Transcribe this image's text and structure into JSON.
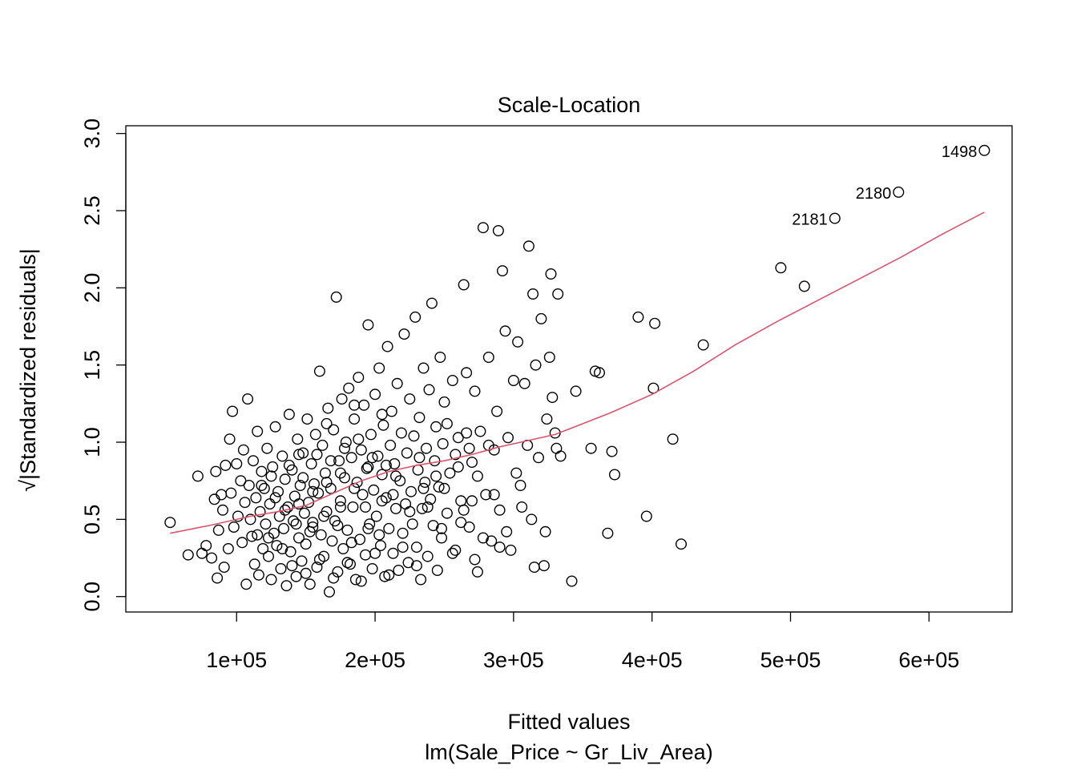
{
  "chart_data": {
    "type": "scatter",
    "title": "Scale-Location",
    "xlabel": "Fitted values",
    "subtitle": "lm(Sale_Price ~ Gr_Liv_Area)",
    "ylabel_root": "√",
    "ylabel": "|Standardized residuals|",
    "xlim": [
      20000,
      660000
    ],
    "ylim": [
      -0.1,
      3.05
    ],
    "x_ticks": [
      {
        "value": 100000,
        "label": "1e+05"
      },
      {
        "value": 200000,
        "label": "2e+05"
      },
      {
        "value": 300000,
        "label": "3e+05"
      },
      {
        "value": 400000,
        "label": "4e+05"
      },
      {
        "value": 500000,
        "label": "5e+05"
      },
      {
        "value": 600000,
        "label": "6e+05"
      }
    ],
    "y_ticks": [
      {
        "value": 0.0,
        "label": "0.0"
      },
      {
        "value": 0.5,
        "label": "0.5"
      },
      {
        "value": 1.0,
        "label": "1.0"
      },
      {
        "value": 1.5,
        "label": "1.5"
      },
      {
        "value": 2.0,
        "label": "2.0"
      },
      {
        "value": 2.5,
        "label": "2.5"
      },
      {
        "value": 3.0,
        "label": "3.0"
      }
    ],
    "smoother_color": "#DF536B",
    "point_color": "#000000",
    "labeled_points": [
      {
        "label": "1498",
        "x": 640000,
        "y": 2.89
      },
      {
        "label": "2180",
        "x": 578000,
        "y": 2.62
      },
      {
        "label": "2181",
        "x": 532000,
        "y": 2.45
      }
    ],
    "smoother": [
      [
        52000,
        0.41
      ],
      [
        80000,
        0.46
      ],
      [
        110000,
        0.52
      ],
      [
        130000,
        0.55
      ],
      [
        150000,
        0.59
      ],
      [
        170000,
        0.67
      ],
      [
        190000,
        0.75
      ],
      [
        210000,
        0.81
      ],
      [
        230000,
        0.85
      ],
      [
        250000,
        0.88
      ],
      [
        270000,
        0.92
      ],
      [
        290000,
        0.97
      ],
      [
        310000,
        1.01
      ],
      [
        330000,
        1.05
      ],
      [
        350000,
        1.12
      ],
      [
        370000,
        1.19
      ],
      [
        400000,
        1.31
      ],
      [
        430000,
        1.46
      ],
      [
        460000,
        1.63
      ],
      [
        490000,
        1.78
      ],
      [
        520000,
        1.92
      ],
      [
        550000,
        2.06
      ],
      [
        580000,
        2.2
      ],
      [
        610000,
        2.35
      ],
      [
        640000,
        2.49
      ]
    ],
    "points": [
      [
        52000,
        0.48
      ],
      [
        65000,
        0.27
      ],
      [
        72000,
        0.78
      ],
      [
        75000,
        0.28
      ],
      [
        78000,
        0.33
      ],
      [
        82000,
        0.25
      ],
      [
        84000,
        0.63
      ],
      [
        85000,
        0.81
      ],
      [
        86000,
        0.12
      ],
      [
        87000,
        0.43
      ],
      [
        89000,
        0.66
      ],
      [
        90000,
        0.56
      ],
      [
        91000,
        0.19
      ],
      [
        92000,
        0.85
      ],
      [
        94000,
        0.31
      ],
      [
        95000,
        1.02
      ],
      [
        96000,
        0.67
      ],
      [
        97000,
        1.2
      ],
      [
        98000,
        0.45
      ],
      [
        100000,
        0.86
      ],
      [
        101000,
        0.52
      ],
      [
        103000,
        0.75
      ],
      [
        104000,
        0.35
      ],
      [
        105000,
        0.95
      ],
      [
        106000,
        0.61
      ],
      [
        107000,
        0.08
      ],
      [
        108000,
        1.28
      ],
      [
        109000,
        0.72
      ],
      [
        110000,
        0.5
      ],
      [
        111000,
        0.39
      ],
      [
        112000,
        0.88
      ],
      [
        113000,
        0.21
      ],
      [
        114000,
        0.64
      ],
      [
        115000,
        1.07
      ],
      [
        116000,
        0.14
      ],
      [
        117000,
        0.55
      ],
      [
        118000,
        0.81
      ],
      [
        119000,
        0.31
      ],
      [
        120000,
        0.7
      ],
      [
        121000,
        0.47
      ],
      [
        122000,
        0.96
      ],
      [
        123000,
        0.26
      ],
      [
        124000,
        0.6
      ],
      [
        125000,
        0.11
      ],
      [
        126000,
        0.84
      ],
      [
        127000,
        0.41
      ],
      [
        128000,
        1.1
      ],
      [
        129000,
        0.33
      ],
      [
        130000,
        0.68
      ],
      [
        131000,
        0.52
      ],
      [
        132000,
        0.18
      ],
      [
        133000,
        0.91
      ],
      [
        134000,
        0.44
      ],
      [
        135000,
        0.76
      ],
      [
        136000,
        0.07
      ],
      [
        137000,
        0.58
      ],
      [
        138000,
        1.18
      ],
      [
        139000,
        0.29
      ],
      [
        140000,
        0.82
      ],
      [
        141000,
        0.49
      ],
      [
        142000,
        0.65
      ],
      [
        143000,
        0.13
      ],
      [
        144000,
        1.02
      ],
      [
        145000,
        0.38
      ],
      [
        146000,
        0.72
      ],
      [
        147000,
        0.23
      ],
      [
        148000,
        0.93
      ],
      [
        149000,
        0.54
      ],
      [
        150000,
        0.34
      ],
      [
        151000,
        1.15
      ],
      [
        152000,
        0.61
      ],
      [
        153000,
        0.08
      ],
      [
        154000,
        0.86
      ],
      [
        155000,
        0.45
      ],
      [
        156000,
        0.73
      ],
      [
        157000,
        1.05
      ],
      [
        158000,
        0.19
      ],
      [
        159000,
        0.67
      ],
      [
        160000,
        1.46
      ],
      [
        161000,
        0.4
      ],
      [
        162000,
        0.98
      ],
      [
        163000,
        0.26
      ],
      [
        164000,
        0.8
      ],
      [
        165000,
        0.55
      ],
      [
        166000,
        1.22
      ],
      [
        167000,
        0.03
      ],
      [
        168000,
        0.7
      ],
      [
        169000,
        0.36
      ],
      [
        170000,
        1.08
      ],
      [
        171000,
        0.49
      ],
      [
        172000,
        1.94
      ],
      [
        173000,
        0.16
      ],
      [
        174000,
        0.88
      ],
      [
        175000,
        0.62
      ],
      [
        176000,
        1.28
      ],
      [
        177000,
        0.31
      ],
      [
        178000,
        0.77
      ],
      [
        179000,
        1.0
      ],
      [
        180000,
        0.43
      ],
      [
        181000,
        1.35
      ],
      [
        182000,
        0.21
      ],
      [
        183000,
        0.9
      ],
      [
        184000,
        0.58
      ],
      [
        185000,
        1.15
      ],
      [
        186000,
        0.11
      ],
      [
        187000,
        0.74
      ],
      [
        188000,
        1.42
      ],
      [
        189000,
        0.37
      ],
      [
        190000,
        0.95
      ],
      [
        191000,
        0.66
      ],
      [
        192000,
        1.24
      ],
      [
        193000,
        0.27
      ],
      [
        194000,
        0.83
      ],
      [
        195000,
        1.76
      ],
      [
        196000,
        0.47
      ],
      [
        197000,
        1.05
      ],
      [
        198000,
        0.18
      ],
      [
        199000,
        0.69
      ],
      [
        200000,
        1.31
      ],
      [
        201000,
        0.52
      ],
      [
        202000,
        0.91
      ],
      [
        203000,
        1.48
      ],
      [
        204000,
        0.33
      ],
      [
        205000,
        0.79
      ],
      [
        206000,
        1.11
      ],
      [
        207000,
        0.13
      ],
      [
        208000,
        0.64
      ],
      [
        209000,
        1.62
      ],
      [
        210000,
        0.44
      ],
      [
        211000,
        0.98
      ],
      [
        212000,
        1.2
      ],
      [
        213000,
        0.28
      ],
      [
        214000,
        0.86
      ],
      [
        215000,
        0.57
      ],
      [
        216000,
        1.38
      ],
      [
        217000,
        0.17
      ],
      [
        218000,
        0.75
      ],
      [
        219000,
        1.06
      ],
      [
        220000,
        0.41
      ],
      [
        221000,
        1.7
      ],
      [
        222000,
        0.6
      ],
      [
        223000,
        0.93
      ],
      [
        224000,
        0.22
      ],
      [
        225000,
        1.28
      ],
      [
        226000,
        0.68
      ],
      [
        227000,
        0.47
      ],
      [
        228000,
        1.04
      ],
      [
        229000,
        1.81
      ],
      [
        230000,
        0.32
      ],
      [
        231000,
        0.82
      ],
      [
        232000,
        1.16
      ],
      [
        233000,
        0.11
      ],
      [
        234000,
        0.57
      ],
      [
        235000,
        1.48
      ],
      [
        236000,
        0.74
      ],
      [
        237000,
        0.96
      ],
      [
        238000,
        0.26
      ],
      [
        239000,
        1.34
      ],
      [
        240000,
        0.63
      ],
      [
        241000,
        1.9
      ],
      [
        242000,
        0.46
      ],
      [
        243000,
        0.88
      ],
      [
        244000,
        1.1
      ],
      [
        245000,
        0.17
      ],
      [
        246000,
        0.71
      ],
      [
        247000,
        1.55
      ],
      [
        248000,
        0.38
      ],
      [
        249000,
        0.99
      ],
      [
        250000,
        1.26
      ],
      [
        252000,
        0.54
      ],
      [
        254000,
        0.8
      ],
      [
        256000,
        1.4
      ],
      [
        258000,
        0.3
      ],
      [
        260000,
        1.03
      ],
      [
        262000,
        0.62
      ],
      [
        264000,
        2.02
      ],
      [
        266000,
        1.45
      ],
      [
        268000,
        0.45
      ],
      [
        270000,
        0.87
      ],
      [
        272000,
        1.33
      ],
      [
        274000,
        0.16
      ],
      [
        276000,
        1.07
      ],
      [
        278000,
        2.39
      ],
      [
        280000,
        0.66
      ],
      [
        282000,
        1.55
      ],
      [
        284000,
        0.36
      ],
      [
        286000,
        0.95
      ],
      [
        288000,
        1.2
      ],
      [
        289000,
        2.37
      ],
      [
        290000,
        0.56
      ],
      [
        292000,
        2.11
      ],
      [
        294000,
        1.72
      ],
      [
        295000,
        0.42
      ],
      [
        296000,
        1.03
      ],
      [
        298000,
        0.3
      ],
      [
        300000,
        1.4
      ],
      [
        302000,
        0.8
      ],
      [
        303000,
        1.65
      ],
      [
        305000,
        0.72
      ],
      [
        306000,
        0.58
      ],
      [
        308000,
        1.38
      ],
      [
        310000,
        0.98
      ],
      [
        311000,
        2.27
      ],
      [
        313000,
        0.5
      ],
      [
        314000,
        1.96
      ],
      [
        315000,
        0.19
      ],
      [
        316000,
        1.5
      ],
      [
        318000,
        0.9
      ],
      [
        320000,
        1.8
      ],
      [
        322000,
        0.2
      ],
      [
        323000,
        0.42
      ],
      [
        324000,
        1.15
      ],
      [
        326000,
        1.55
      ],
      [
        327000,
        2.09
      ],
      [
        328000,
        1.29
      ],
      [
        330000,
        1.06
      ],
      [
        331000,
        0.96
      ],
      [
        332000,
        1.96
      ],
      [
        334000,
        0.91
      ],
      [
        342000,
        0.1
      ],
      [
        345000,
        1.33
      ],
      [
        356000,
        0.96
      ],
      [
        359000,
        1.46
      ],
      [
        362000,
        1.45
      ],
      [
        368000,
        0.41
      ],
      [
        371000,
        0.94
      ],
      [
        373000,
        0.79
      ],
      [
        390000,
        1.81
      ],
      [
        396000,
        0.52
      ],
      [
        402000,
        1.77
      ],
      [
        401000,
        1.35
      ],
      [
        415000,
        1.02
      ],
      [
        421000,
        0.34
      ],
      [
        437000,
        1.63
      ],
      [
        493000,
        2.13
      ],
      [
        510000,
        2.01
      ],
      [
        532000,
        2.45
      ],
      [
        578000,
        2.62
      ],
      [
        640000,
        2.89
      ],
      [
        118000,
        0.72
      ],
      [
        128000,
        0.64
      ],
      [
        138000,
        0.85
      ],
      [
        148000,
        0.77
      ],
      [
        158000,
        0.92
      ],
      [
        168000,
        0.88
      ],
      [
        178000,
        0.96
      ],
      [
        188000,
        1.02
      ],
      [
        198000,
        0.9
      ],
      [
        208000,
        0.85
      ],
      [
        123000,
        0.38
      ],
      [
        133000,
        0.31
      ],
      [
        143000,
        0.47
      ],
      [
        153000,
        0.42
      ],
      [
        163000,
        0.52
      ],
      [
        173000,
        0.46
      ],
      [
        183000,
        0.35
      ],
      [
        193000,
        0.58
      ],
      [
        203000,
        0.4
      ],
      [
        213000,
        0.66
      ],
      [
        145000,
        0.6
      ],
      [
        155000,
        0.68
      ],
      [
        165000,
        0.74
      ],
      [
        175000,
        0.8
      ],
      [
        185000,
        0.7
      ],
      [
        195000,
        0.84
      ],
      [
        205000,
        0.62
      ],
      [
        215000,
        0.78
      ],
      [
        225000,
        0.55
      ],
      [
        235000,
        0.7
      ],
      [
        140000,
        0.2
      ],
      [
        150000,
        0.15
      ],
      [
        160000,
        0.24
      ],
      [
        170000,
        0.12
      ],
      [
        180000,
        0.22
      ],
      [
        190000,
        0.1
      ],
      [
        200000,
        0.28
      ],
      [
        210000,
        0.14
      ],
      [
        220000,
        0.32
      ],
      [
        230000,
        0.2
      ],
      [
        115000,
        0.4
      ],
      [
        125000,
        0.78
      ],
      [
        135000,
        0.56
      ],
      [
        145000,
        0.92
      ],
      [
        155000,
        0.48
      ],
      [
        165000,
        1.12
      ],
      [
        175000,
        0.58
      ],
      [
        185000,
        1.24
      ],
      [
        195000,
        0.44
      ],
      [
        205000,
        1.18
      ],
      [
        250000,
        0.7
      ],
      [
        258000,
        0.92
      ],
      [
        262000,
        0.48
      ],
      [
        266000,
        1.06
      ],
      [
        270000,
        0.62
      ],
      [
        274000,
        0.78
      ],
      [
        278000,
        0.38
      ],
      [
        282000,
        0.98
      ],
      [
        286000,
        0.66
      ],
      [
        290000,
        0.32
      ],
      [
        232000,
        0.9
      ],
      [
        238000,
        0.58
      ],
      [
        244000,
        0.78
      ],
      [
        248000,
        0.44
      ],
      [
        252000,
        1.12
      ],
      [
        256000,
        0.28
      ],
      [
        260000,
        0.84
      ],
      [
        264000,
        0.56
      ],
      [
        268000,
        0.96
      ],
      [
        272000,
        0.24
      ]
    ]
  }
}
